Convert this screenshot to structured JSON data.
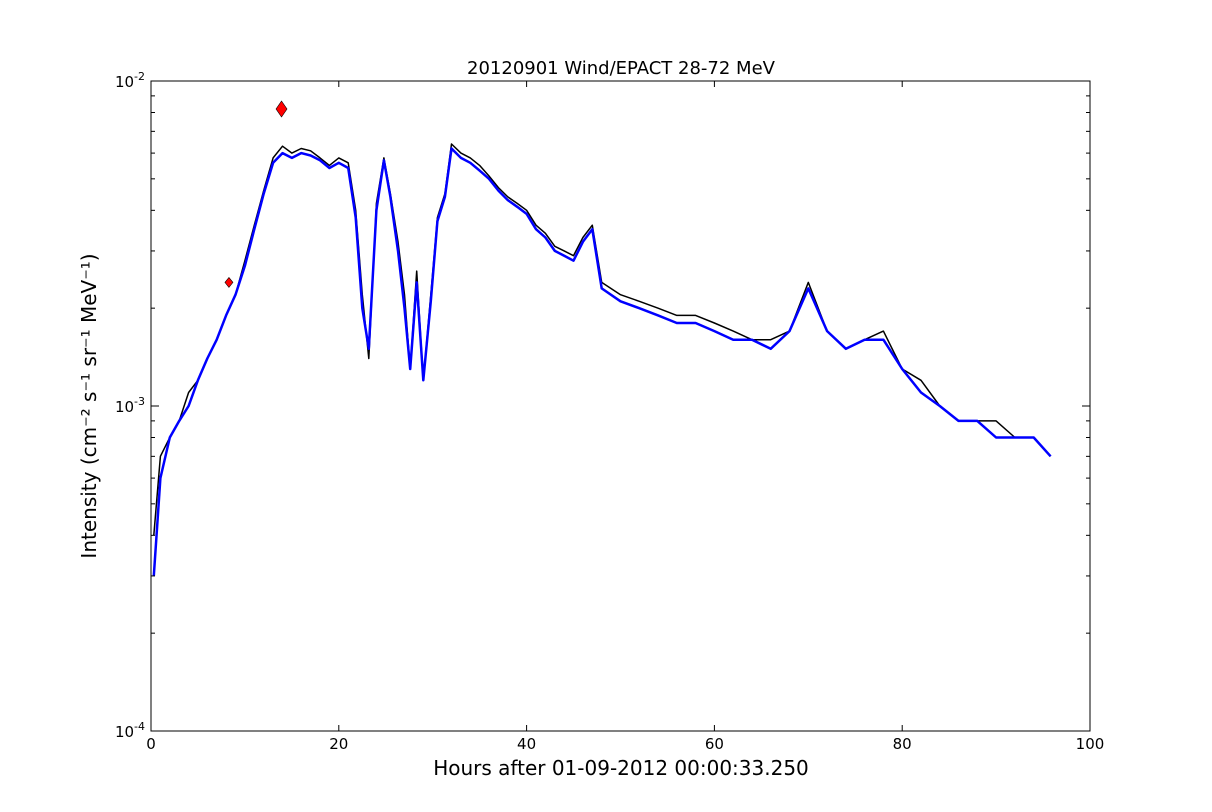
{
  "chart_data": {
    "type": "line",
    "title": "20120901 Wind/EPACT 28-72 MeV",
    "xlabel": "Hours after 01-09-2012 00:00:33.250",
    "ylabel": "Intensity (cm⁻² s⁻¹ sr⁻¹ MeV⁻¹)",
    "xlim": [
      0,
      100
    ],
    "ylim": [
      0.0001,
      0.01
    ],
    "yscale": "log",
    "grid": false,
    "x_ticks": [
      0,
      20,
      40,
      60,
      80,
      100
    ],
    "x_tick_labels": [
      "0",
      "20",
      "40",
      "60",
      "80",
      "100"
    ],
    "y_ticks": [
      0.0001,
      0.001,
      0.01
    ],
    "y_tick_labels": [
      {
        "base": "10",
        "exp": "-4"
      },
      {
        "base": "10",
        "exp": "-3"
      },
      {
        "base": "10",
        "exp": "-2"
      }
    ],
    "series": [
      {
        "style": "raw",
        "color": "#000000",
        "x": [
          0.3,
          1,
          2,
          3,
          4,
          5,
          6,
          7,
          8,
          9,
          10,
          11,
          12,
          13,
          14,
          15,
          16,
          17,
          18,
          19,
          20,
          21,
          21.8,
          22.5,
          23.2,
          24,
          24.8,
          25.5,
          26.3,
          27,
          27.6,
          28.3,
          29,
          29.8,
          30.5,
          31.3,
          32,
          33,
          34,
          35,
          36,
          37,
          38,
          39,
          40,
          41,
          42,
          43,
          44,
          45,
          46,
          47,
          48,
          50,
          52,
          54,
          56,
          58,
          60,
          62,
          64,
          66,
          68,
          70,
          72,
          74,
          76,
          78,
          80,
          82,
          84,
          86,
          88,
          90,
          92,
          94,
          95.8
        ],
        "y": [
          0.0004,
          0.0007,
          0.0008,
          0.0009,
          0.0011,
          0.0012,
          0.0014,
          0.0016,
          0.0019,
          0.0022,
          0.0028,
          0.0036,
          0.0046,
          0.0058,
          0.0063,
          0.006,
          0.0062,
          0.0061,
          0.0058,
          0.0055,
          0.0058,
          0.0056,
          0.004,
          0.0022,
          0.0014,
          0.0042,
          0.0058,
          0.0045,
          0.0032,
          0.0022,
          0.0013,
          0.0026,
          0.0012,
          0.0022,
          0.0038,
          0.0045,
          0.0064,
          0.006,
          0.0058,
          0.0055,
          0.0051,
          0.0047,
          0.0044,
          0.0042,
          0.004,
          0.0036,
          0.0034,
          0.0031,
          0.003,
          0.0029,
          0.0033,
          0.0036,
          0.0024,
          0.0022,
          0.0021,
          0.002,
          0.0019,
          0.0019,
          0.0018,
          0.0017,
          0.0016,
          0.0016,
          0.0017,
          0.0024,
          0.0017,
          0.0015,
          0.0016,
          0.0017,
          0.0013,
          0.0012,
          0.001,
          0.0009,
          0.0009,
          0.0009,
          0.0008,
          0.0008,
          0.0007
        ]
      },
      {
        "style": "smoothed",
        "color": "#0000ff",
        "x": [
          0.3,
          1,
          2,
          3,
          4,
          5,
          6,
          7,
          8,
          9,
          10,
          11,
          12,
          13,
          14,
          15,
          16,
          17,
          18,
          19,
          20,
          21,
          21.8,
          22.5,
          23.2,
          24,
          24.8,
          25.5,
          26.3,
          27,
          27.6,
          28.3,
          29,
          29.8,
          30.5,
          31.3,
          32,
          33,
          34,
          35,
          36,
          37,
          38,
          39,
          40,
          41,
          42,
          43,
          44,
          45,
          46,
          47,
          48,
          50,
          52,
          54,
          56,
          58,
          60,
          62,
          64,
          66,
          68,
          70,
          72,
          74,
          76,
          78,
          80,
          82,
          84,
          86,
          88,
          90,
          92,
          94,
          95.8
        ],
        "y": [
          0.0003,
          0.0006,
          0.0008,
          0.0009,
          0.001,
          0.0012,
          0.0014,
          0.0016,
          0.0019,
          0.0022,
          0.0027,
          0.0035,
          0.0045,
          0.0056,
          0.006,
          0.0058,
          0.006,
          0.0059,
          0.0057,
          0.0054,
          0.0056,
          0.0054,
          0.0038,
          0.002,
          0.0015,
          0.004,
          0.0057,
          0.0044,
          0.003,
          0.002,
          0.0013,
          0.0024,
          0.0012,
          0.0021,
          0.0037,
          0.0044,
          0.0062,
          0.0058,
          0.0056,
          0.0053,
          0.005,
          0.0046,
          0.0043,
          0.0041,
          0.0039,
          0.0035,
          0.0033,
          0.003,
          0.0029,
          0.0028,
          0.0032,
          0.0035,
          0.0023,
          0.0021,
          0.002,
          0.0019,
          0.0018,
          0.0018,
          0.0017,
          0.0016,
          0.0016,
          0.0015,
          0.0017,
          0.0023,
          0.0017,
          0.0015,
          0.0016,
          0.0016,
          0.0013,
          0.0011,
          0.001,
          0.0009,
          0.0009,
          0.0008,
          0.0008,
          0.0008,
          0.0007
        ]
      }
    ],
    "markers": [
      {
        "x": 8.3,
        "y": 0.0024,
        "shape": "diamond",
        "color": "#ff0000",
        "size": "small"
      },
      {
        "x": 13.9,
        "y": 0.0082,
        "shape": "diamond",
        "color": "#ff0000",
        "size": "large"
      }
    ]
  }
}
